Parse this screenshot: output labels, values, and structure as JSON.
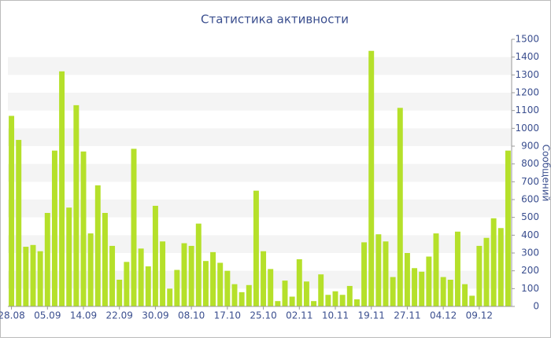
{
  "chart_data": {
    "type": "bar",
    "title": "Статистика активности",
    "y_label": "Сообщений",
    "categories": [
      "28.08",
      null,
      null,
      null,
      null,
      "05.09",
      null,
      null,
      null,
      null,
      "14.09",
      null,
      null,
      null,
      null,
      "22.09",
      null,
      null,
      null,
      null,
      "30.09",
      null,
      null,
      null,
      null,
      "08.10",
      null,
      null,
      null,
      null,
      "17.10",
      null,
      null,
      null,
      null,
      "25.10",
      null,
      null,
      null,
      null,
      "02.11",
      null,
      null,
      null,
      null,
      "10.11",
      null,
      null,
      null,
      null,
      "19.11",
      null,
      null,
      null,
      null,
      "27.11",
      null,
      null,
      null,
      null,
      "04.12",
      null,
      null,
      null,
      null,
      "09.12",
      null,
      null,
      null,
      null
    ],
    "values": [
      1070,
      935,
      335,
      345,
      310,
      525,
      875,
      1320,
      555,
      1130,
      870,
      410,
      680,
      525,
      340,
      150,
      250,
      885,
      325,
      225,
      565,
      365,
      100,
      205,
      355,
      340,
      465,
      255,
      305,
      245,
      200,
      125,
      80,
      120,
      650,
      310,
      210,
      30,
      145,
      55,
      265,
      140,
      30,
      180,
      65,
      85,
      65,
      115,
      40,
      360,
      1435,
      405,
      365,
      165,
      1115,
      300,
      215,
      195,
      280,
      410,
      165,
      150,
      420,
      125,
      60,
      340,
      385,
      495,
      440,
      875
    ],
    "color": "#b5e02a",
    "ylim": [
      0,
      1500
    ],
    "yticks": [
      0,
      100,
      200,
      300,
      400,
      500,
      600,
      700,
      800,
      900,
      1000,
      1100,
      1200,
      1300,
      1400,
      1500
    ],
    "grid": true
  }
}
